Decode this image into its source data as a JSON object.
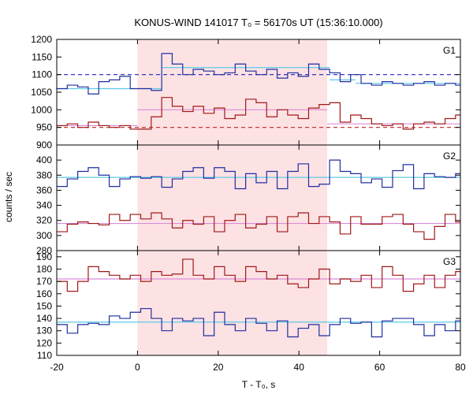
{
  "chart_data": {
    "type": "line",
    "title": "KONUS-WIND 141017 T₀ = 56170s UT (15:36:10.000)",
    "xlabel": "T - T₀, s",
    "ylabel": "counts / sec",
    "xlim": [
      -20,
      80
    ],
    "xticks": [
      -20,
      0,
      20,
      40,
      60,
      80
    ],
    "shaded_interval": [
      0,
      47
    ],
    "panels": [
      {
        "name": "G1",
        "ylim": [
          900,
          1200
        ],
        "yticks": [
          900,
          950,
          1000,
          1050,
          1100,
          1150,
          1200
        ],
        "series": [
          {
            "color": "#1f2fa0",
            "step_edges": [
              -20,
              -17.4,
              -14.8,
              -12.2,
              -9.6,
              -7,
              -4.4,
              -1.8,
              0.8,
              3.4,
              6,
              8.6,
              11.2,
              13.8,
              16.4,
              19,
              21.6,
              24.2,
              26.8,
              29.4,
              32,
              34.6,
              37.2,
              39.8,
              42.4,
              45,
              47.6,
              50.2,
              52.8,
              55.4,
              58,
              60.6,
              63.2,
              65.8,
              68.4,
              71,
              73.6,
              76.2,
              78.8,
              80
            ],
            "values": [
              1060,
              1070,
              1065,
              1045,
              1080,
              1085,
              1095,
              1060,
              1060,
              1055,
              1160,
              1130,
              1100,
              1115,
              1110,
              1100,
              1105,
              1130,
              1110,
              1100,
              1115,
              1090,
              1105,
              1095,
              1130,
              1115,
              1105,
              1080,
              1100,
              1075,
              1070,
              1080,
              1075,
              1070,
              1075,
              1080,
              1070,
              1075,
              1070
            ],
            "fit": {
              "color": "#5ec8e6",
              "segments": [
                {
                  "x": [
                    -20,
                    6
                  ],
                  "y": [
                    1060,
                    1060
                  ]
                },
                {
                  "x": [
                    6,
                    47.6
                  ],
                  "y": [
                    1120,
                    1120
                  ]
                },
                {
                  "x": [
                    47.6,
                    54
                  ],
                  "y": [
                    1085,
                    1085
                  ]
                },
                {
                  "x": [
                    54,
                    80
                  ],
                  "y": [
                    1075,
                    1075
                  ]
                }
              ]
            },
            "background": {
              "color": "#2020c0",
              "dash": true,
              "y": 1100
            }
          },
          {
            "color": "#a01818",
            "step_edges": [
              -20,
              -17.4,
              -14.8,
              -12.2,
              -9.6,
              -7,
              -4.4,
              -1.8,
              0.8,
              3.4,
              6,
              8.6,
              11.2,
              13.8,
              16.4,
              19,
              21.6,
              24.2,
              26.8,
              29.4,
              32,
              34.6,
              37.2,
              39.8,
              42.4,
              45,
              47.6,
              50.2,
              52.8,
              55.4,
              58,
              60.6,
              63.2,
              65.8,
              68.4,
              71,
              73.6,
              76.2,
              78.8,
              80
            ],
            "values": [
              955,
              960,
              950,
              965,
              955,
              950,
              955,
              945,
              945,
              980,
              1035,
              1010,
              995,
              1010,
              990,
              1005,
              975,
              985,
              1030,
              1020,
              980,
              1000,
              985,
              975,
              1005,
              1015,
              1020,
              965,
              985,
              975,
              960,
              955,
              960,
              945,
              960,
              965,
              960,
              975,
              985
            ],
            "fit": {
              "color": "#d98bd9",
              "segments": [
                {
                  "x": [
                    -20,
                    0
                  ],
                  "y": [
                    955,
                    955
                  ]
                },
                {
                  "x": [
                    0,
                    47
                  ],
                  "y": [
                    1000,
                    1000
                  ]
                },
                {
                  "x": [
                    47,
                    80
                  ],
                  "y": [
                    960,
                    960
                  ]
                }
              ]
            },
            "background": {
              "color": "#c02020",
              "dash": true,
              "y": 950
            }
          }
        ]
      },
      {
        "name": "G2",
        "ylim": [
          280,
          420
        ],
        "yticks": [
          280,
          300,
          320,
          340,
          360,
          380,
          400
        ],
        "series": [
          {
            "color": "#1f2fa0",
            "step_edges": [
              -20,
              -17.4,
              -14.8,
              -12.2,
              -9.6,
              -7,
              -4.4,
              -1.8,
              0.8,
              3.4,
              6,
              8.6,
              11.2,
              13.8,
              16.4,
              19,
              21.6,
              24.2,
              26.8,
              29.4,
              32,
              34.6,
              37.2,
              39.8,
              42.4,
              45,
              47.6,
              50.2,
              52.8,
              55.4,
              58,
              60.6,
              63.2,
              65.8,
              68.4,
              71,
              73.6,
              76.2,
              78.8,
              80
            ],
            "values": [
              365,
              375,
              385,
              390,
              380,
              365,
              375,
              378,
              376,
              378,
              364,
              375,
              385,
              390,
              376,
              390,
              385,
              362,
              382,
              370,
              385,
              362,
              385,
              395,
              365,
              368,
              400,
              385,
              382,
              370,
              375,
              364,
              386,
              394,
              362,
              382,
              378,
              377,
              382
            ],
            "fit": {
              "color": "#5ec8e6",
              "segments": [
                {
                  "x": [
                    -20,
                    80
                  ],
                  "y": [
                    377,
                    377
                  ]
                }
              ]
            }
          },
          {
            "color": "#a01818",
            "step_edges": [
              -20,
              -17.4,
              -14.8,
              -12.2,
              -9.6,
              -7,
              -4.4,
              -1.8,
              0.8,
              3.4,
              6,
              8.6,
              11.2,
              13.8,
              16.4,
              19,
              21.6,
              24.2,
              26.8,
              29.4,
              32,
              34.6,
              37.2,
              39.8,
              42.4,
              45,
              47.6,
              50.2,
              52.8,
              55.4,
              58,
              60.6,
              63.2,
              65.8,
              68.4,
              71,
              73.6,
              76.2,
              78.8,
              80
            ],
            "values": [
              305,
              315,
              318,
              316,
              314,
              328,
              320,
              328,
              322,
              330,
              322,
              310,
              320,
              315,
              325,
              305,
              320,
              328,
              310,
              315,
              325,
              305,
              325,
              330,
              316,
              325,
              318,
              302,
              325,
              315,
              315,
              325,
              328,
              315,
              305,
              295,
              312,
              328,
              318
            ],
            "fit": {
              "color": "#d98bd9",
              "segments": [
                {
                  "x": [
                    -20,
                    80
                  ],
                  "y": [
                    316,
                    316
                  ]
                }
              ]
            }
          }
        ]
      },
      {
        "name": "G3",
        "ylim": [
          110,
          195
        ],
        "yticks": [
          110,
          120,
          130,
          140,
          150,
          160,
          170,
          180,
          190
        ],
        "series": [
          {
            "color": "#a01818",
            "step_edges": [
              -20,
              -17.4,
              -14.8,
              -12.2,
              -9.6,
              -7,
              -4.4,
              -1.8,
              0.8,
              3.4,
              6,
              8.6,
              11.2,
              13.8,
              16.4,
              19,
              21.6,
              24.2,
              26.8,
              29.4,
              32,
              34.6,
              37.2,
              39.8,
              42.4,
              45,
              47.6,
              50.2,
              52.8,
              55.4,
              58,
              60.6,
              63.2,
              65.8,
              68.4,
              71,
              73.6,
              76.2,
              78.8,
              80
            ],
            "values": [
              170,
              162,
              170,
              182,
              178,
              175,
              172,
              175,
              170,
              178,
              175,
              176,
              188,
              175,
              172,
              182,
              175,
              170,
              182,
              178,
              172,
              175,
              168,
              165,
              172,
              180,
              168,
              172,
              170,
              175,
              165,
              182,
              175,
              162,
              168,
              175,
              165,
              175,
              178
            ],
            "fit": {
              "color": "#d98bd9",
              "segments": [
                {
                  "x": [
                    -20,
                    80
                  ],
                  "y": [
                    172,
                    172
                  ]
                }
              ]
            }
          },
          {
            "color": "#1f2fa0",
            "step_edges": [
              -20,
              -17.4,
              -14.8,
              -12.2,
              -9.6,
              -7,
              -4.4,
              -1.8,
              0.8,
              3.4,
              6,
              8.6,
              11.2,
              13.8,
              16.4,
              19,
              21.6,
              24.2,
              26.8,
              29.4,
              32,
              34.6,
              37.2,
              39.8,
              42.4,
              45,
              47.6,
              50.2,
              52.8,
              55.4,
              58,
              60.6,
              63.2,
              65.8,
              68.4,
              71,
              73.6,
              76.2,
              78.8,
              80
            ],
            "values": [
              135,
              128,
              135,
              136,
              135,
              142,
              140,
              145,
              148,
              140,
              130,
              140,
              138,
              140,
              126,
              145,
              135,
              130,
              140,
              136,
              130,
              138,
              125,
              132,
              135,
              126,
              135,
              140,
              136,
              137,
              125,
              138,
              140,
              140,
              135,
              126,
              135,
              130,
              138
            ],
            "fit": {
              "color": "#5ec8e6",
              "segments": [
                {
                  "x": [
                    -20,
                    80
                  ],
                  "y": [
                    137,
                    137
                  ]
                }
              ]
            }
          }
        ]
      }
    ]
  }
}
